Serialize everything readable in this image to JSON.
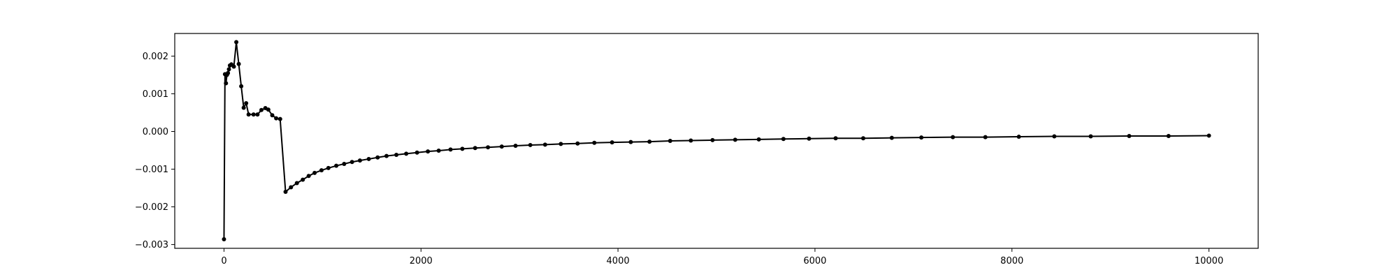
{
  "chart_data": {
    "type": "line",
    "title": "",
    "xlabel": "",
    "ylabel": "",
    "xlim": [
      -500,
      10500
    ],
    "ylim": [
      -0.0031,
      0.0026
    ],
    "grid": false,
    "x_ticks": [
      0,
      2000,
      4000,
      6000,
      8000,
      10000
    ],
    "x_tick_labels": [
      "0",
      "2000",
      "4000",
      "6000",
      "8000",
      "10000"
    ],
    "y_ticks": [
      0.002,
      0.001,
      0.0,
      -0.001,
      -0.002,
      -0.003
    ],
    "y_tick_labels": [
      "0.002",
      "0.001",
      "0.000",
      "−0.001",
      "−0.002",
      "−0.003"
    ],
    "series": [
      {
        "line_color": "#000000",
        "marker": "circle",
        "points": [
          [
            0,
            -0.00286
          ],
          [
            10,
            0.00152
          ],
          [
            20,
            0.00128
          ],
          [
            30,
            0.0015
          ],
          [
            40,
            0.00155
          ],
          [
            50,
            0.00165
          ],
          [
            60,
            0.00175
          ],
          [
            75,
            0.00178
          ],
          [
            100,
            0.00172
          ],
          [
            125,
            0.00237
          ],
          [
            150,
            0.00179
          ],
          [
            175,
            0.0012
          ],
          [
            200,
            0.00063
          ],
          [
            225,
            0.00075
          ],
          [
            250,
            0.00045
          ],
          [
            300,
            0.00045
          ],
          [
            340,
            0.00045
          ],
          [
            380,
            0.00057
          ],
          [
            420,
            0.00062
          ],
          [
            450,
            0.00058
          ],
          [
            490,
            0.00043
          ],
          [
            530,
            0.00035
          ],
          [
            570,
            0.00033
          ],
          [
            625,
            -0.0016
          ],
          [
            680,
            -0.00148
          ],
          [
            740,
            -0.00137
          ],
          [
            800,
            -0.00128
          ],
          [
            860,
            -0.00118
          ],
          [
            920,
            -0.0011
          ],
          [
            990,
            -0.00103
          ],
          [
            1060,
            -0.00097
          ],
          [
            1140,
            -0.00091
          ],
          [
            1220,
            -0.00086
          ],
          [
            1300,
            -0.00081
          ],
          [
            1380,
            -0.00077
          ],
          [
            1470,
            -0.00073
          ],
          [
            1560,
            -0.00069
          ],
          [
            1650,
            -0.00065
          ],
          [
            1750,
            -0.00062
          ],
          [
            1850,
            -0.00059
          ],
          [
            1960,
            -0.00056
          ],
          [
            2070,
            -0.00053
          ],
          [
            2180,
            -0.00051
          ],
          [
            2300,
            -0.00048
          ],
          [
            2420,
            -0.00046
          ],
          [
            2550,
            -0.00044
          ],
          [
            2680,
            -0.00042
          ],
          [
            2820,
            -0.0004
          ],
          [
            2960,
            -0.00038
          ],
          [
            3110,
            -0.00036
          ],
          [
            3260,
            -0.00035
          ],
          [
            3420,
            -0.00033
          ],
          [
            3590,
            -0.00032
          ],
          [
            3760,
            -0.0003
          ],
          [
            3940,
            -0.00029
          ],
          [
            4130,
            -0.00028
          ],
          [
            4320,
            -0.00027
          ],
          [
            4530,
            -0.00025
          ],
          [
            4740,
            -0.00024
          ],
          [
            4960,
            -0.00023
          ],
          [
            5190,
            -0.00022
          ],
          [
            5430,
            -0.00021
          ],
          [
            5680,
            -0.0002
          ],
          [
            5940,
            -0.00019
          ],
          [
            6210,
            -0.00018
          ],
          [
            6490,
            -0.00018
          ],
          [
            6780,
            -0.00017
          ],
          [
            7080,
            -0.00016
          ],
          [
            7400,
            -0.00015
          ],
          [
            7730,
            -0.00015
          ],
          [
            8070,
            -0.00014
          ],
          [
            8430,
            -0.00013
          ],
          [
            8800,
            -0.00013
          ],
          [
            9190,
            -0.00012
          ],
          [
            9590,
            -0.00012
          ],
          [
            10000,
            -0.00011
          ]
        ]
      }
    ]
  }
}
